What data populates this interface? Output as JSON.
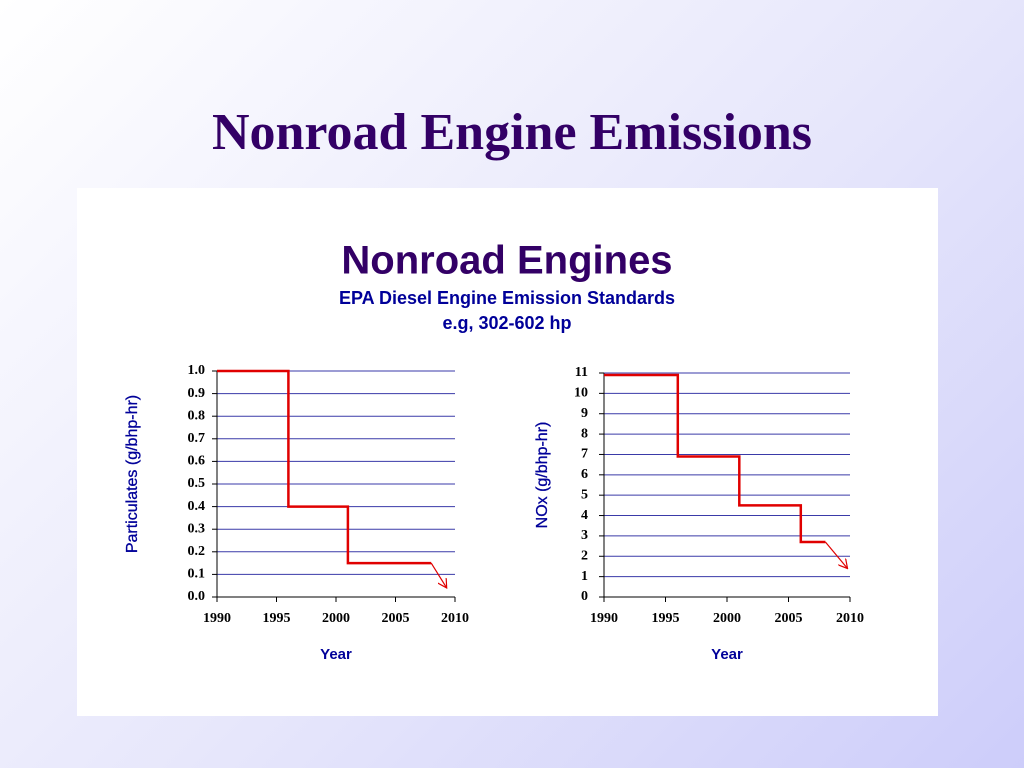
{
  "slide_title": "Nonroad Engine Emissions",
  "figure": {
    "title": "Nonroad Engines",
    "subtitle": [
      "EPA Diesel Engine Emission Standards",
      "e.g, 302-602 hp"
    ]
  },
  "chart_data": [
    {
      "type": "line",
      "ylabel": "Particulates (g/bhp-hr)",
      "xlabel": "Year",
      "xlim": [
        1990,
        2010
      ],
      "xticks": [
        1990,
        1995,
        2000,
        2005,
        2010
      ],
      "ylim": [
        0,
        1
      ],
      "yticks": [
        {
          "value": 0,
          "label": "0.0"
        },
        0.1,
        0.2,
        0.3,
        0.4,
        0.5,
        0.6,
        0.7,
        0.8,
        0.9,
        {
          "value": 1,
          "label": "1.0"
        }
      ],
      "grid": true,
      "series": [
        {
          "color": "#e00000",
          "x": [
            1990,
            1996,
            1996,
            2001,
            2001,
            2008
          ],
          "values": [
            1.0,
            1.0,
            0.4,
            0.4,
            0.15,
            0.15
          ]
        },
        {
          "color": "#e00000",
          "marker_end": "arrow",
          "x": [
            2008,
            2009.3
          ],
          "values": [
            0.15,
            0.04
          ]
        }
      ]
    },
    {
      "type": "line",
      "ylabel": "NOx (g/bhp-hr)",
      "xlabel": "Year",
      "xlim": [
        1990,
        2010
      ],
      "xticks": [
        1990,
        1995,
        2000,
        2005,
        2010
      ],
      "ylim": [
        0,
        11
      ],
      "yticks": [
        0,
        1,
        2,
        3,
        4,
        5,
        6,
        7,
        8,
        9,
        10,
        11
      ],
      "grid": true,
      "series": [
        {
          "color": "#e00000",
          "x": [
            1990,
            1996,
            1996,
            2001,
            2001,
            2006,
            2006,
            2008
          ],
          "values": [
            10.9,
            10.9,
            6.9,
            6.9,
            4.5,
            4.5,
            2.7,
            2.7
          ]
        },
        {
          "color": "#e00000",
          "marker_end": "arrow",
          "x": [
            2008,
            2009.8
          ],
          "values": [
            2.7,
            1.4
          ]
        }
      ]
    }
  ]
}
